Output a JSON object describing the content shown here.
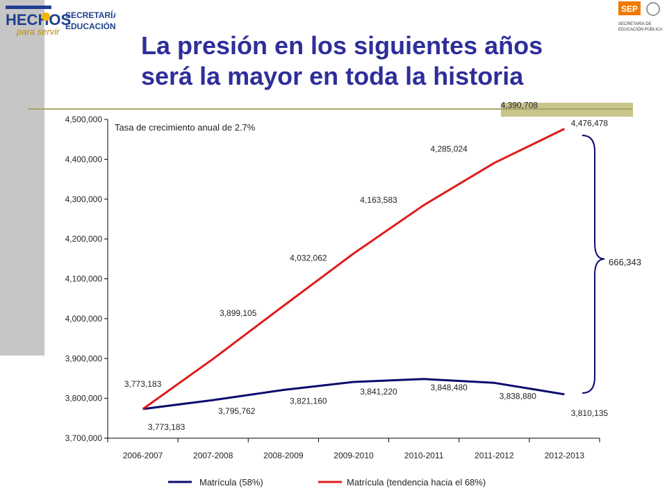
{
  "header": {
    "title_line1": "La presión en los siguientes años",
    "title_line2": "será la mayor en toda la historia",
    "logo_left": {
      "word": "HECHOS",
      "script": "para servir",
      "label_line1": "SECRETARÍA DE",
      "label_line2": "EDUCACIÓN"
    },
    "logo_right": {
      "abbr": "SEP",
      "label_line1": "SECRETARÍA DE",
      "label_line2": "EDUCACIÓN PÚBLICA"
    }
  },
  "chart_data": {
    "type": "line",
    "title": "",
    "annotation": "Tasa de crecimiento anual de 2.7%",
    "categories": [
      "2006-2007",
      "2007-2008",
      "2008-2009",
      "2009-2010",
      "2010-2011",
      "2011-2012",
      "2012-2013"
    ],
    "ylim": [
      3700000,
      4500000
    ],
    "yticks": [
      "3,700,000",
      "3,800,000",
      "3,900,000",
      "4,000,000",
      "4,100,000",
      "4,200,000",
      "4,300,000",
      "4,400,000",
      "4,500,000"
    ],
    "series": [
      {
        "name": "Matrícula (58%)",
        "color": "#0a0a6e",
        "values": [
          3773183,
          3795762,
          3821160,
          3841220,
          3848480,
          3838880,
          3810135
        ],
        "labels": [
          "3,773,183",
          "3,795,762",
          "3,821,160",
          "3,841,220",
          "3,848,480",
          "3,838,880",
          "3,810,135"
        ]
      },
      {
        "name": "Matrícula (tendencia hacia el 68%)",
        "color": "#e01b1b",
        "values": [
          3773183,
          3899105,
          4032062,
          4163583,
          4285024,
          4390708,
          4476478
        ],
        "labels": [
          "3,773,183",
          "3,899,105",
          "4,032,062",
          "4,163,583",
          "4,285,024",
          "4,390,708",
          "4,476,478"
        ]
      }
    ],
    "difference_label": "666,343"
  }
}
